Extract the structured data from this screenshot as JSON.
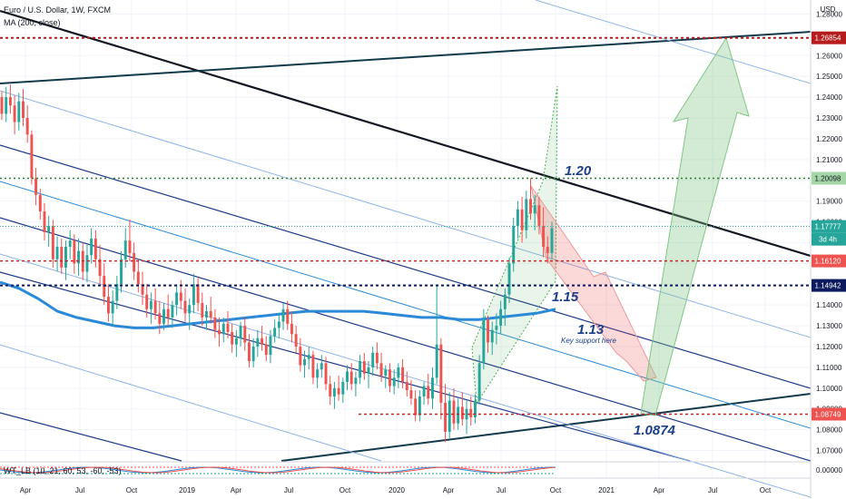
{
  "header": {
    "symbol": "Euro / U.S. Dollar, 1W, FXCM",
    "indicator": "MA (200, close)",
    "oscillator": "WT_LB (10, 21, 60, 53, -60, -53)",
    "currency": "USD"
  },
  "chart_data": {
    "type": "candlestick",
    "ylim": [
      1.065,
      1.285
    ],
    "y_ticks": [
      1.07,
      1.08,
      1.09,
      1.1,
      1.11,
      1.12,
      1.13,
      1.14,
      1.15,
      1.16,
      1.17,
      1.18,
      1.19,
      1.2,
      1.21,
      1.22,
      1.23,
      1.24,
      1.25,
      1.26,
      1.27,
      1.28
    ],
    "x_labels": [
      "Apr",
      "Jul",
      "Oct",
      "2019",
      "Apr",
      "Jul",
      "Oct",
      "2020",
      "Apr",
      "Jul",
      "Oct",
      "2021",
      "Apr",
      "Jul",
      "Oct"
    ],
    "price_levels": [
      {
        "value": "1.26854",
        "color": "#b71c1c"
      },
      {
        "value": "1.20098",
        "color": "#2e7d32"
      },
      {
        "value": "1.17777",
        "color": "#26a69a"
      },
      {
        "value": "1.16120",
        "color": "#c62828"
      },
      {
        "value": "1.14942",
        "color": "#0d1b5e"
      },
      {
        "value": "1.08749",
        "color": "#c62828"
      }
    ],
    "countdown": "3d 4h",
    "annotations": [
      "1.20",
      "1.15",
      "1.13",
      "Key support here",
      "1.0874"
    ],
    "oscillator_tick": "0.00000",
    "colors": {
      "up": "#26a69a",
      "down": "#ef5350",
      "ma": "#2b8ad8",
      "text_annotation": "#1d3f8a"
    },
    "ma_values": [
      1.151,
      1.148,
      1.143,
      1.137,
      1.134,
      1.132,
      1.13,
      1.129,
      1.129,
      1.13,
      1.131,
      1.132,
      1.133,
      1.134,
      1.135,
      1.136,
      1.137,
      1.137,
      1.137,
      1.137,
      1.136,
      1.135,
      1.134,
      1.134,
      1.133,
      1.133,
      1.134,
      1.135,
      1.136,
      1.138
    ],
    "candles": [
      [
        1.24,
        1.243,
        1.229,
        1.232
      ],
      [
        1.232,
        1.245,
        1.228,
        1.24
      ],
      [
        1.24,
        1.246,
        1.232,
        1.236
      ],
      [
        1.236,
        1.241,
        1.222,
        1.228
      ],
      [
        1.228,
        1.242,
        1.224,
        1.238
      ],
      [
        1.238,
        1.244,
        1.226,
        1.23
      ],
      [
        1.23,
        1.236,
        1.218,
        1.222
      ],
      [
        1.222,
        1.224,
        1.198,
        1.201
      ],
      [
        1.201,
        1.206,
        1.188,
        1.193
      ],
      [
        1.193,
        1.196,
        1.181,
        1.185
      ],
      [
        1.185,
        1.189,
        1.171,
        1.175
      ],
      [
        1.175,
        1.183,
        1.168,
        1.178
      ],
      [
        1.178,
        1.181,
        1.158,
        1.162
      ],
      [
        1.162,
        1.173,
        1.156,
        1.168
      ],
      [
        1.168,
        1.172,
        1.155,
        1.158
      ],
      [
        1.158,
        1.171,
        1.152,
        1.168
      ],
      [
        1.168,
        1.176,
        1.162,
        1.171
      ],
      [
        1.171,
        1.174,
        1.155,
        1.16
      ],
      [
        1.16,
        1.172,
        1.154,
        1.166
      ],
      [
        1.166,
        1.17,
        1.152,
        1.156
      ],
      [
        1.156,
        1.169,
        1.151,
        1.164
      ],
      [
        1.164,
        1.177,
        1.16,
        1.172
      ],
      [
        1.172,
        1.176,
        1.158,
        1.162
      ],
      [
        1.162,
        1.169,
        1.15,
        1.154
      ],
      [
        1.154,
        1.16,
        1.14,
        1.144
      ],
      [
        1.144,
        1.15,
        1.132,
        1.136
      ],
      [
        1.136,
        1.147,
        1.13,
        1.142
      ],
      [
        1.142,
        1.154,
        1.138,
        1.15
      ],
      [
        1.15,
        1.166,
        1.146,
        1.162
      ],
      [
        1.162,
        1.177,
        1.158,
        1.171
      ],
      [
        1.171,
        1.181,
        1.161,
        1.165
      ],
      [
        1.165,
        1.17,
        1.152,
        1.156
      ],
      [
        1.156,
        1.162,
        1.146,
        1.15
      ],
      [
        1.15,
        1.156,
        1.14,
        1.145
      ],
      [
        1.145,
        1.15,
        1.134,
        1.138
      ],
      [
        1.138,
        1.146,
        1.131,
        1.142
      ],
      [
        1.142,
        1.148,
        1.133,
        1.136
      ],
      [
        1.136,
        1.142,
        1.126,
        1.131
      ],
      [
        1.131,
        1.141,
        1.128,
        1.138
      ],
      [
        1.138,
        1.145,
        1.13,
        1.134
      ],
      [
        1.134,
        1.142,
        1.129,
        1.14
      ],
      [
        1.14,
        1.15,
        1.135,
        1.146
      ],
      [
        1.146,
        1.152,
        1.138,
        1.142
      ],
      [
        1.142,
        1.148,
        1.132,
        1.136
      ],
      [
        1.136,
        1.143,
        1.128,
        1.14
      ],
      [
        1.14,
        1.155,
        1.136,
        1.15
      ],
      [
        1.15,
        1.153,
        1.137,
        1.141
      ],
      [
        1.141,
        1.146,
        1.13,
        1.134
      ],
      [
        1.134,
        1.14,
        1.128,
        1.137
      ],
      [
        1.137,
        1.144,
        1.131,
        1.134
      ],
      [
        1.134,
        1.138,
        1.124,
        1.128
      ],
      [
        1.128,
        1.134,
        1.12,
        1.126
      ],
      [
        1.126,
        1.134,
        1.122,
        1.131
      ],
      [
        1.131,
        1.137,
        1.124,
        1.127
      ],
      [
        1.127,
        1.131,
        1.117,
        1.121
      ],
      [
        1.121,
        1.128,
        1.115,
        1.124
      ],
      [
        1.124,
        1.132,
        1.12,
        1.13
      ],
      [
        1.13,
        1.134,
        1.118,
        1.122
      ],
      [
        1.122,
        1.126,
        1.11,
        1.113
      ],
      [
        1.113,
        1.124,
        1.11,
        1.12
      ],
      [
        1.12,
        1.128,
        1.115,
        1.124
      ],
      [
        1.124,
        1.13,
        1.118,
        1.121
      ],
      [
        1.121,
        1.125,
        1.113,
        1.116
      ],
      [
        1.116,
        1.128,
        1.112,
        1.125
      ],
      [
        1.125,
        1.133,
        1.122,
        1.129
      ],
      [
        1.129,
        1.136,
        1.124,
        1.132
      ],
      [
        1.132,
        1.141,
        1.128,
        1.138
      ],
      [
        1.138,
        1.142,
        1.128,
        1.131
      ],
      [
        1.131,
        1.137,
        1.122,
        1.126
      ],
      [
        1.126,
        1.13,
        1.117,
        1.12
      ],
      [
        1.12,
        1.124,
        1.108,
        1.111
      ],
      [
        1.111,
        1.118,
        1.105,
        1.114
      ],
      [
        1.114,
        1.12,
        1.109,
        1.116
      ],
      [
        1.116,
        1.118,
        1.102,
        1.105
      ],
      [
        1.105,
        1.112,
        1.1,
        1.109
      ],
      [
        1.109,
        1.116,
        1.105,
        1.112
      ],
      [
        1.112,
        1.115,
        1.099,
        1.102
      ],
      [
        1.102,
        1.106,
        1.092,
        1.096
      ],
      [
        1.096,
        1.103,
        1.09,
        1.1
      ],
      [
        1.1,
        1.106,
        1.094,
        1.097
      ],
      [
        1.097,
        1.105,
        1.093,
        1.103
      ],
      [
        1.103,
        1.111,
        1.099,
        1.108
      ],
      [
        1.108,
        1.112,
        1.099,
        1.102
      ],
      [
        1.102,
        1.108,
        1.096,
        1.105
      ],
      [
        1.105,
        1.116,
        1.102,
        1.113
      ],
      [
        1.113,
        1.117,
        1.104,
        1.107
      ],
      [
        1.107,
        1.113,
        1.1,
        1.11
      ],
      [
        1.11,
        1.12,
        1.106,
        1.117
      ],
      [
        1.117,
        1.122,
        1.109,
        1.112
      ],
      [
        1.112,
        1.117,
        1.103,
        1.106
      ],
      [
        1.106,
        1.111,
        1.1,
        1.109
      ],
      [
        1.109,
        1.112,
        1.098,
        1.101
      ],
      [
        1.101,
        1.109,
        1.097,
        1.105
      ],
      [
        1.105,
        1.112,
        1.1,
        1.11
      ],
      [
        1.11,
        1.114,
        1.1,
        1.103
      ],
      [
        1.103,
        1.108,
        1.096,
        1.099
      ],
      [
        1.099,
        1.104,
        1.092,
        1.095
      ],
      [
        1.095,
        1.099,
        1.084,
        1.087
      ],
      [
        1.087,
        1.099,
        1.084,
        1.096
      ],
      [
        1.096,
        1.103,
        1.092,
        1.101
      ],
      [
        1.101,
        1.107,
        1.092,
        1.095
      ],
      [
        1.095,
        1.11,
        1.09,
        1.105
      ],
      [
        1.105,
        1.149,
        1.102,
        1.121
      ],
      [
        1.121,
        1.124,
        1.085,
        1.093
      ],
      [
        1.093,
        1.102,
        1.074,
        1.079
      ],
      [
        1.079,
        1.098,
        1.076,
        1.094
      ],
      [
        1.094,
        1.1,
        1.08,
        1.083
      ],
      [
        1.083,
        1.095,
        1.08,
        1.091
      ],
      [
        1.091,
        1.098,
        1.082,
        1.085
      ],
      [
        1.085,
        1.094,
        1.078,
        1.09
      ],
      [
        1.09,
        1.096,
        1.082,
        1.086
      ],
      [
        1.086,
        1.097,
        1.083,
        1.094
      ],
      [
        1.094,
        1.116,
        1.092,
        1.112
      ],
      [
        1.112,
        1.138,
        1.109,
        1.133
      ],
      [
        1.133,
        1.135,
        1.117,
        1.122
      ],
      [
        1.122,
        1.132,
        1.116,
        1.128
      ],
      [
        1.128,
        1.136,
        1.121,
        1.13
      ],
      [
        1.13,
        1.142,
        1.126,
        1.138
      ],
      [
        1.138,
        1.148,
        1.13,
        1.145
      ],
      [
        1.145,
        1.163,
        1.141,
        1.16
      ],
      [
        1.16,
        1.182,
        1.156,
        1.178
      ],
      [
        1.178,
        1.19,
        1.172,
        1.186
      ],
      [
        1.186,
        1.192,
        1.17,
        1.176
      ],
      [
        1.176,
        1.195,
        1.172,
        1.191
      ],
      [
        1.191,
        1.201,
        1.181,
        1.184
      ],
      [
        1.184,
        1.193,
        1.176,
        1.188
      ],
      [
        1.188,
        1.192,
        1.174,
        1.178
      ],
      [
        1.178,
        1.187,
        1.163,
        1.168
      ],
      [
        1.168,
        1.173,
        1.16,
        1.165
      ],
      [
        1.165,
        1.18,
        1.162,
        1.177
      ]
    ]
  }
}
